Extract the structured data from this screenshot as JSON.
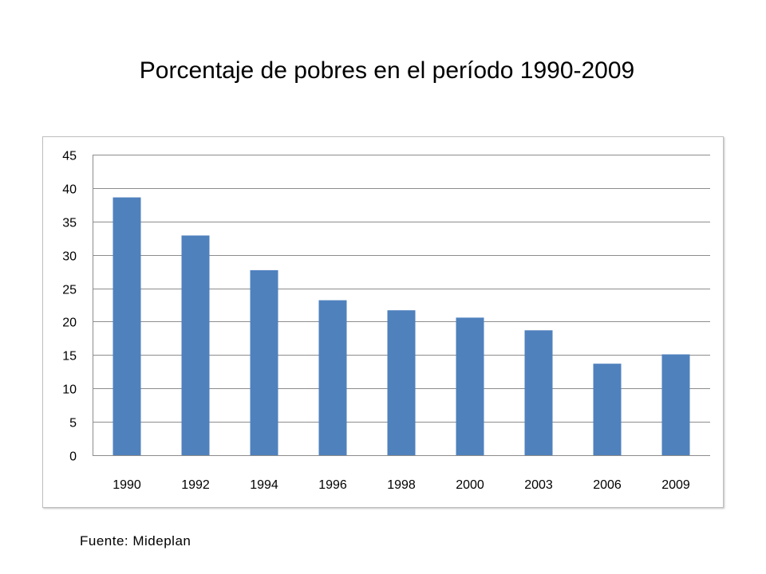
{
  "slide": {
    "title": "Porcentaje de pobres en el período 1990-2009",
    "source": "Fuente: Mideplan"
  },
  "colors": {
    "bar": "#4f81bd",
    "gridline": "#8c8c8c",
    "axis": "#8c8c8c"
  },
  "chart_data": {
    "type": "bar",
    "title": "",
    "xlabel": "",
    "ylabel": "",
    "categories": [
      "1990",
      "1992",
      "1994",
      "1996",
      "1998",
      "2000",
      "2003",
      "2006",
      "2009"
    ],
    "values": [
      38.6,
      32.9,
      27.7,
      23.2,
      21.7,
      20.6,
      18.7,
      13.7,
      15.1
    ],
    "ylim": [
      0,
      45
    ],
    "yticks": [
      0,
      5,
      10,
      15,
      20,
      25,
      30,
      35,
      40,
      45
    ],
    "grid": true,
    "legend": "none"
  }
}
